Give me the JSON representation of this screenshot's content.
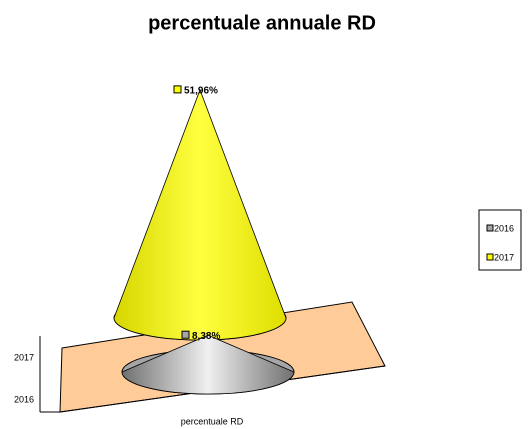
{
  "chart_data": {
    "type": "cone",
    "title": "percentuale annuale RD",
    "categories": [
      "percentuale RD"
    ],
    "series": [
      {
        "name": "2016",
        "color": "#a6a6a6",
        "values": [
          8.38
        ],
        "value_labels": [
          "8,38%"
        ]
      },
      {
        "name": "2017",
        "color": "#ffff00",
        "values": [
          51.96
        ],
        "value_labels": [
          "51,96%"
        ]
      }
    ],
    "floor_color": "#ffcc99"
  }
}
